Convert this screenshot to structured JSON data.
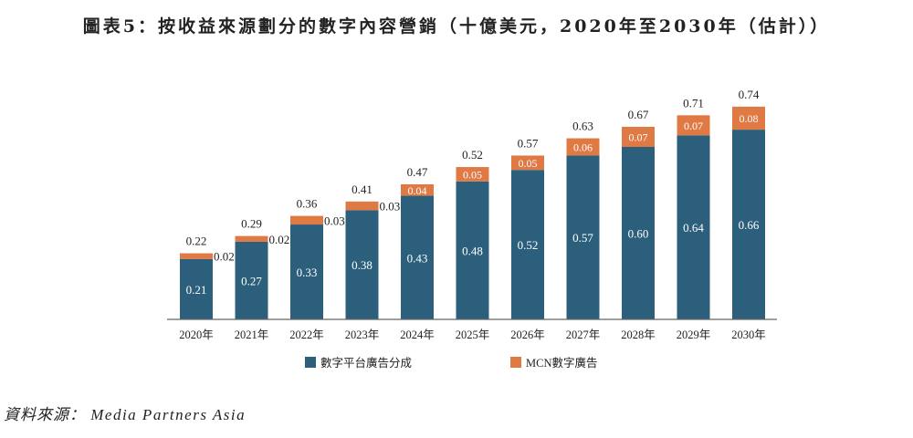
{
  "chart_data": {
    "type": "bar",
    "stacked": true,
    "title": "圖表5：按收益來源劃分的數字內容營銷（十億美元，2020年至2030年（估計））",
    "categories": [
      "2020年",
      "2021年",
      "2022年",
      "2023年",
      "2024年",
      "2025年",
      "2026年",
      "2027年",
      "2028年",
      "2029年",
      "2030年"
    ],
    "series": [
      {
        "name": "數字平台廣告分成",
        "color": "#2b5f7c",
        "values": [
          0.21,
          0.27,
          0.33,
          0.38,
          0.43,
          0.48,
          0.52,
          0.57,
          0.6,
          0.64,
          0.66
        ]
      },
      {
        "name": "MCN數字廣告",
        "color": "#e07a45",
        "values": [
          0.02,
          0.02,
          0.03,
          0.03,
          0.04,
          0.05,
          0.05,
          0.06,
          0.07,
          0.07,
          0.08
        ]
      }
    ],
    "totals": [
      0.22,
      0.29,
      0.36,
      0.41,
      0.47,
      0.52,
      0.57,
      0.63,
      0.67,
      0.71,
      0.74
    ],
    "ylim": [
      0,
      0.8
    ],
    "xlabel": "",
    "ylabel": "",
    "grid": false,
    "legend": "bottom"
  },
  "source": {
    "label": "資料來源：",
    "name": "Media Partners Asia"
  }
}
